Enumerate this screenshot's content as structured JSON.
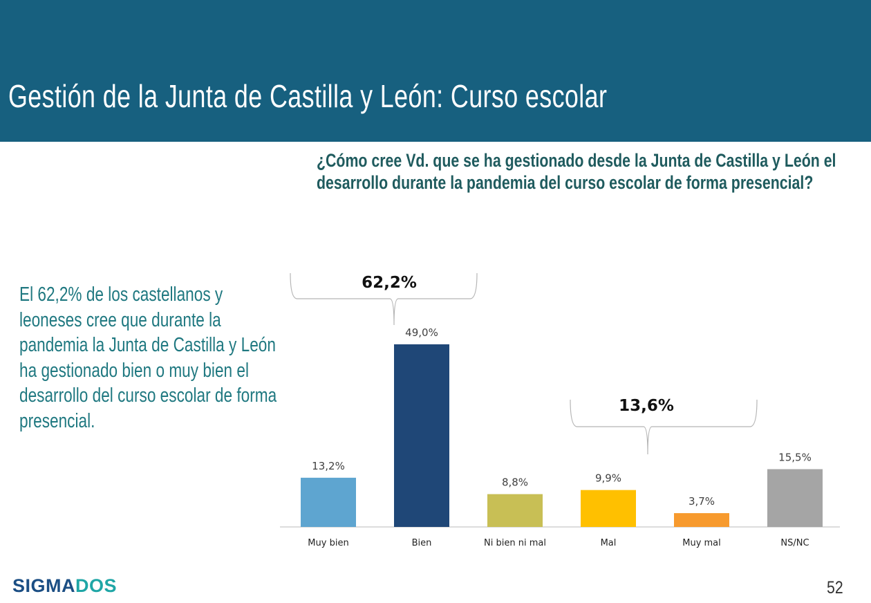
{
  "header": {
    "title": "Gestión de la Junta de Castilla y León: Curso escolar"
  },
  "question": "¿Cómo cree Vd. que se ha gestionado desde la Junta de Castilla y León el desarrollo durante la pandemia del curso escolar de forma presencial?",
  "summary": "El 62,2% de los castellanos y leoneses cree que durante la pandemia la Junta de Castilla y León ha gestionado bien o muy bien el desarrollo del  curso escolar de forma presencial.",
  "logo": {
    "part1": "SIGMA",
    "part2": "DOS"
  },
  "page_number": "52",
  "chart_data": {
    "type": "bar",
    "categories": [
      "Muy bien",
      "Bien",
      "Ni bien ni mal",
      "Mal",
      "Muy mal",
      "NS/NC"
    ],
    "values": [
      13.2,
      49.0,
      8.8,
      9.9,
      3.7,
      15.5
    ],
    "value_labels": [
      "13,2%",
      "49,0%",
      "8,8%",
      "9,9%",
      "3,7%",
      "15,5%"
    ],
    "colors": [
      "#5ea5d0",
      "#1f4777",
      "#c8bf55",
      "#ffc000",
      "#f79a2e",
      "#a5a5a5"
    ],
    "grid": false,
    "annotations": [
      {
        "label": "62,2%",
        "groups": [
          "Muy bien",
          "Bien"
        ]
      },
      {
        "label": "13,6%",
        "groups": [
          "Mal",
          "Muy mal"
        ]
      }
    ]
  }
}
